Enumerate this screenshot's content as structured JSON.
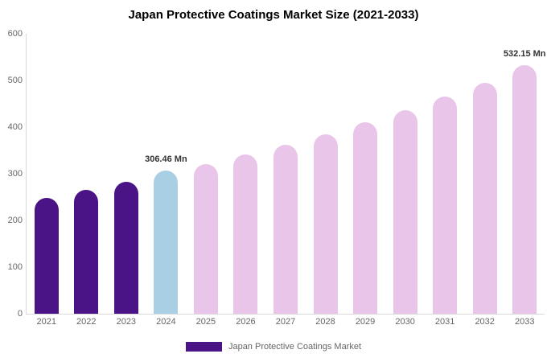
{
  "title": "Japan Protective Coatings Market Size (2021-2033)",
  "legend": {
    "label": "Japan Protective Coatings Market",
    "color": "#4a1486"
  },
  "chart_data": {
    "type": "bar",
    "title": "Japan Protective Coatings Market Size (2021-2033)",
    "categories": [
      "2021",
      "2022",
      "2023",
      "2024",
      "2025",
      "2026",
      "2027",
      "2028",
      "2029",
      "2030",
      "2031",
      "2032",
      "2033"
    ],
    "values": [
      248,
      265,
      283,
      306.46,
      320,
      341,
      362,
      385,
      410,
      437,
      465,
      495,
      532.15
    ],
    "bar_colors": [
      "#4a1486",
      "#4a1486",
      "#4a1486",
      "#a9cfe5",
      "#e9c6e9",
      "#e9c6e9",
      "#e9c6e9",
      "#e9c6e9",
      "#e9c6e9",
      "#e9c6e9",
      "#e9c6e9",
      "#e9c6e9",
      "#e9c6e9"
    ],
    "xlabel": "",
    "ylabel": "",
    "ylim": [
      0,
      600
    ],
    "yticks": [
      0,
      100,
      200,
      300,
      400,
      500,
      600
    ],
    "grid": false,
    "legend_position": "bottom",
    "annotations": [
      {
        "category": "2024",
        "text": "306.46 Mn"
      },
      {
        "category": "2033",
        "text": "532.15 Mn"
      }
    ]
  }
}
